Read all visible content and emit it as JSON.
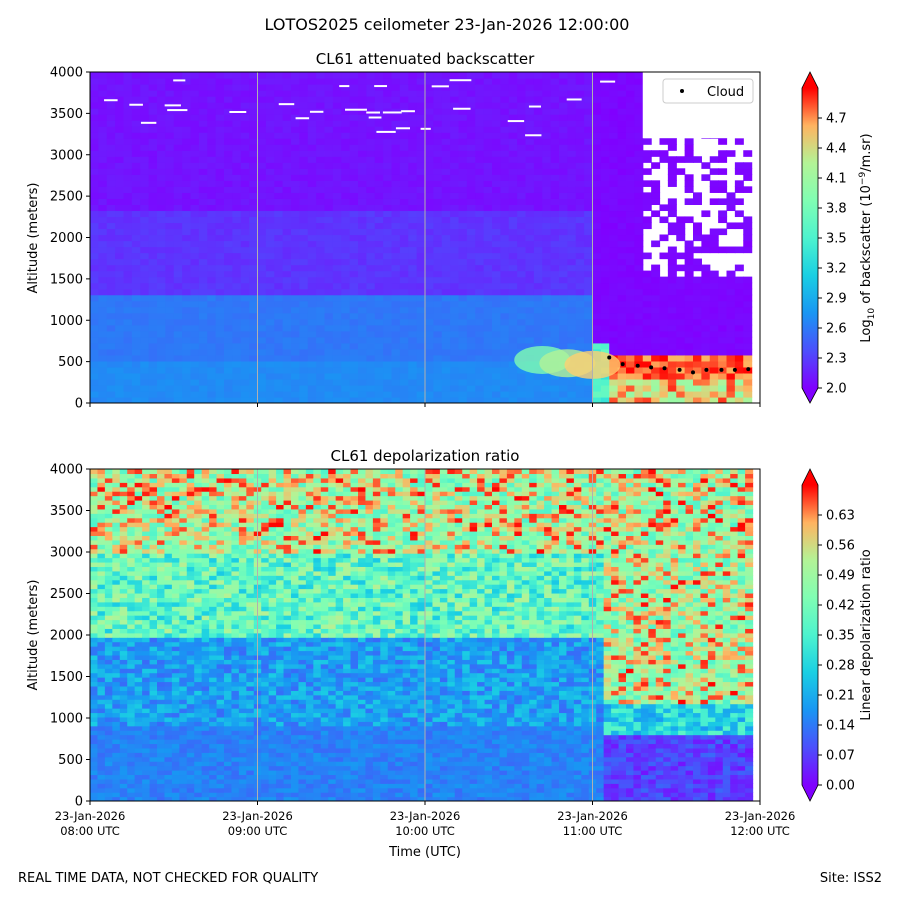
{
  "suptitle": "LOTOS2025 ceilometer 23-Jan-2026 12:00:00",
  "footer": {
    "left": "REAL TIME DATA, NOT CHECKED FOR QUALITY",
    "right": "Site: ISS2"
  },
  "colors": {
    "cloud_marker": "#000000",
    "grid": "#b0b0b0",
    "background": "#ffffff"
  },
  "chart_data": [
    {
      "type": "heatmap",
      "title": "CL61 attenuated backscatter",
      "xlabel": "",
      "ylabel": "Altitude (meters)",
      "ylim": [
        0,
        4000
      ],
      "yticks": [
        "0",
        "500",
        "1000",
        "1500",
        "2000",
        "2500",
        "3000",
        "3500",
        "4000"
      ],
      "xlim_hours_utc": [
        8,
        12
      ],
      "colorbar": {
        "label": "Log10 of backscatter (10^-9/m.sr)",
        "label_base": "Log",
        "label_sub": "10",
        "label_mid": " of backscatter (10",
        "label_sup": "−9",
        "label_end": "/m.sr)",
        "range": [
          2.0,
          5.0
        ],
        "ticks": [
          "2.0",
          "2.3",
          "2.6",
          "2.9",
          "3.2",
          "3.5",
          "3.8",
          "4.1",
          "4.4",
          "4.7"
        ],
        "extend": "both"
      },
      "legend": {
        "label": "Cloud",
        "position": "top-right"
      },
      "cloud_base": [
        {
          "hour": 11.1,
          "altitude": 550
        },
        {
          "hour": 11.18,
          "altitude": 470
        },
        {
          "hour": 11.27,
          "altitude": 450
        },
        {
          "hour": 11.35,
          "altitude": 430
        },
        {
          "hour": 11.43,
          "altitude": 420
        },
        {
          "hour": 11.52,
          "altitude": 400
        },
        {
          "hour": 11.6,
          "altitude": 370
        },
        {
          "hour": 11.68,
          "altitude": 400
        },
        {
          "hour": 11.77,
          "altitude": 400
        },
        {
          "hour": 11.85,
          "altitude": 400
        },
        {
          "hour": 11.93,
          "altitude": 410
        }
      ]
    },
    {
      "type": "heatmap",
      "title": "CL61 depolarization ratio",
      "xlabel": "Time (UTC)",
      "ylabel": "Altitude (meters)",
      "ylim": [
        0,
        4000
      ],
      "yticks": [
        "0",
        "500",
        "1000",
        "1500",
        "2000",
        "2500",
        "3000",
        "3500",
        "4000"
      ],
      "xticks": [
        {
          "date": "23-Jan-2026",
          "time": "08:00 UTC"
        },
        {
          "date": "23-Jan-2026",
          "time": "09:00 UTC"
        },
        {
          "date": "23-Jan-2026",
          "time": "10:00 UTC"
        },
        {
          "date": "23-Jan-2026",
          "time": "11:00 UTC"
        },
        {
          "date": "23-Jan-2026",
          "time": "12:00 UTC"
        }
      ],
      "xlim_hours_utc": [
        8,
        12
      ],
      "colorbar": {
        "label": "Linear depolarization ratio",
        "range": [
          0.0,
          0.7
        ],
        "ticks": [
          "0.00",
          "0.07",
          "0.14",
          "0.21",
          "0.28",
          "0.35",
          "0.42",
          "0.49",
          "0.56",
          "0.63"
        ],
        "extend": "both"
      }
    }
  ]
}
